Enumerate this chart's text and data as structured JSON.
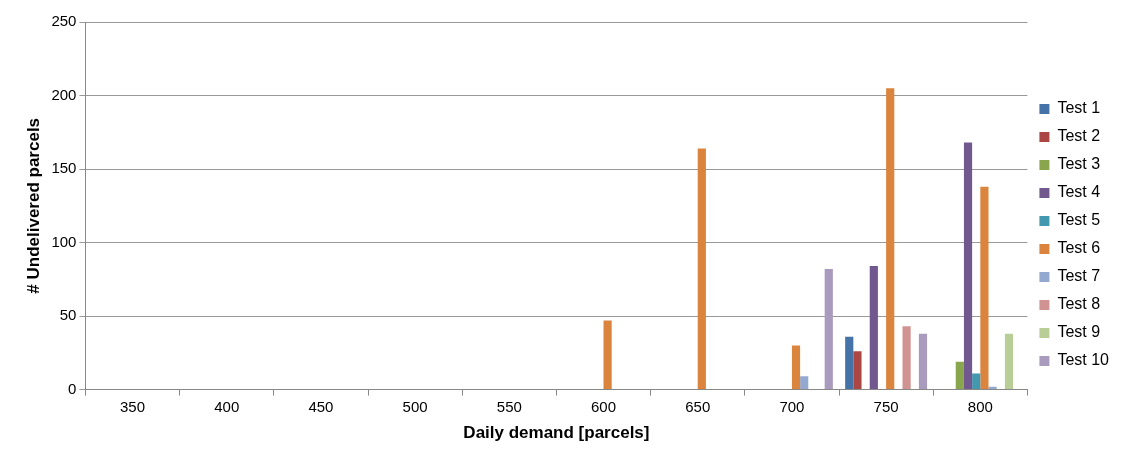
{
  "chart_data": {
    "type": "bar",
    "xlabel": "Daily demand [parcels]",
    "ylabel": "# Undelivered parcels",
    "categories": [
      "350",
      "400",
      "450",
      "500",
      "550",
      "600",
      "650",
      "700",
      "750",
      "800"
    ],
    "ylim": [
      0,
      250
    ],
    "yticks": [
      0,
      50,
      100,
      150,
      200,
      250
    ],
    "grid": "y",
    "legend": "right",
    "series": [
      {
        "name": "Test 1",
        "color": "#4572a7",
        "values": [
          null,
          null,
          null,
          null,
          null,
          null,
          null,
          null,
          36,
          null
        ]
      },
      {
        "name": "Test 2",
        "color": "#aa4643",
        "values": [
          null,
          null,
          null,
          null,
          null,
          null,
          null,
          null,
          26,
          null
        ]
      },
      {
        "name": "Test 3",
        "color": "#89a54e",
        "values": [
          null,
          null,
          null,
          null,
          null,
          null,
          null,
          null,
          null,
          19
        ]
      },
      {
        "name": "Test 4",
        "color": "#71588f",
        "values": [
          null,
          null,
          null,
          null,
          null,
          null,
          null,
          null,
          84,
          168
        ]
      },
      {
        "name": "Test 5",
        "color": "#4198af",
        "values": [
          null,
          null,
          null,
          null,
          null,
          null,
          null,
          null,
          null,
          11
        ]
      },
      {
        "name": "Test 6",
        "color": "#db843d",
        "values": [
          null,
          null,
          null,
          null,
          null,
          47,
          164,
          30,
          205,
          138
        ]
      },
      {
        "name": "Test 7",
        "color": "#93a9cf",
        "values": [
          null,
          null,
          null,
          null,
          null,
          null,
          null,
          9,
          null,
          2
        ]
      },
      {
        "name": "Test 8",
        "color": "#d19392",
        "values": [
          null,
          null,
          null,
          null,
          null,
          null,
          null,
          null,
          43,
          null
        ]
      },
      {
        "name": "Test 9",
        "color": "#b9cd96",
        "values": [
          null,
          null,
          null,
          null,
          null,
          null,
          null,
          null,
          null,
          38
        ]
      },
      {
        "name": "Test 10",
        "color": "#a99bbd",
        "values": [
          null,
          null,
          null,
          null,
          null,
          null,
          null,
          82,
          38,
          null
        ]
      }
    ]
  }
}
